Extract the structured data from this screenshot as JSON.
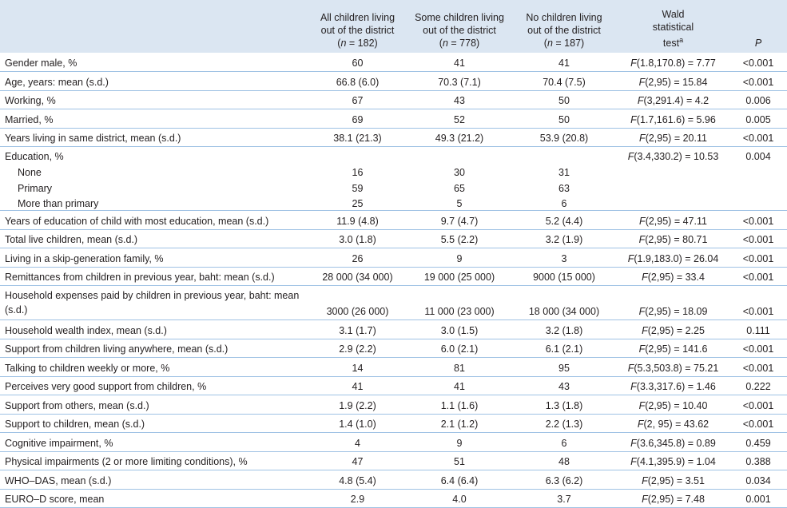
{
  "table": {
    "header": {
      "columns": [
        {
          "lines": [
            "All children living",
            "out of the district",
            "(n = 182)"
          ]
        },
        {
          "lines": [
            "Some children living",
            "out of the district",
            "(n = 778)"
          ]
        },
        {
          "lines": [
            "No children living",
            "out of the district",
            "(n = 187)"
          ]
        }
      ],
      "wald": {
        "lines": [
          "Wald",
          "statistical",
          "test"
        ],
        "sup": "a"
      },
      "p": "P"
    },
    "rows": [
      {
        "label": "Gender male, %",
        "cells": [
          "60",
          "41",
          "41"
        ],
        "wald": "F(1.8,170.8) = 7.77",
        "p": "<0.001"
      },
      {
        "label": "Age, years: mean (s.d.)",
        "cells": [
          "66.8 (6.0)",
          "70.3 (7.1)",
          "70.4 (7.5)"
        ],
        "wald": "F(2,95) = 15.84",
        "p": "<0.001"
      },
      {
        "label": "Working, %",
        "cells": [
          "67",
          "43",
          "50"
        ],
        "wald": "F(3,291.4) = 4.2",
        "p": "0.006"
      },
      {
        "label": "Married, %",
        "cells": [
          "69",
          "52",
          "50"
        ],
        "wald": "F(1.7,161.6) = 5.96",
        "p": "0.005"
      },
      {
        "label": "Years living in same district, mean (s.d.)",
        "cells": [
          "38.1 (21.3)",
          "49.3 (21.2)",
          "53.9 (20.8)"
        ],
        "wald": "F(2,95) = 20.11",
        "p": "<0.001"
      },
      {
        "label": "Education, %",
        "wald": "F(3.4,330.2) = 10.53",
        "p": "0.004",
        "subrows": [
          {
            "label": "None",
            "cells": [
              "16",
              "30",
              "31"
            ]
          },
          {
            "label": "Primary",
            "cells": [
              "59",
              "65",
              "63"
            ]
          },
          {
            "label": "More than primary",
            "cells": [
              "25",
              "5",
              "6"
            ]
          }
        ]
      },
      {
        "label": "Years of education of child with most education, mean (s.d.)",
        "cells": [
          "11.9 (4.8)",
          "9.7 (4.7)",
          "5.2 (4.4)"
        ],
        "wald": "F(2,95) = 47.11",
        "p": "<0.001"
      },
      {
        "label": "Total live children, mean (s.d.)",
        "cells": [
          "3.0 (1.8)",
          "5.5 (2.2)",
          "3.2 (1.9)"
        ],
        "wald": "F(2,95) = 80.71",
        "p": "<0.001"
      },
      {
        "label": "Living in a skip-generation family, %",
        "cells": [
          "26",
          "9",
          "3"
        ],
        "wald": "F(1.9,183.0) = 26.04",
        "p": "<0.001"
      },
      {
        "label": "Remittances from children in previous year, baht: mean (s.d.)",
        "cells": [
          "28 000 (34 000)",
          "19 000 (25 000)",
          "9000 (15 000)"
        ],
        "wald": "F(2,95) = 33.4",
        "p": "<0.001"
      },
      {
        "label": "Household expenses paid by children in previous year, baht: mean (s.d.)",
        "cells": [
          "3000 (26 000)",
          "11 000 (23 000)",
          "18 000 (34 000)"
        ],
        "wald": "F(2,95) = 18.09",
        "p": "<0.001"
      },
      {
        "label": "Household wealth index, mean (s.d.)",
        "cells": [
          "3.1 (1.7)",
          "3.0 (1.5)",
          "3.2 (1.8)"
        ],
        "wald": "F(2,95) = 2.25",
        "p": "0.111"
      },
      {
        "label": "Support from children living anywhere, mean (s.d.)",
        "cells": [
          "2.9 (2.2)",
          "6.0 (2.1)",
          "6.1 (2.1)"
        ],
        "wald": "F(2,95) = 141.6",
        "p": "<0.001"
      },
      {
        "label": "Talking to children weekly or more, %",
        "cells": [
          "14",
          "81",
          "95"
        ],
        "wald": "F(5.3,503.8) = 75.21",
        "p": "<0.001"
      },
      {
        "label": "Perceives very good support from children, %",
        "cells": [
          "41",
          "41",
          "43"
        ],
        "wald": "F(3.3,317.6) = 1.46",
        "p": "0.222"
      },
      {
        "label": "Support from others, mean (s.d.)",
        "cells": [
          "1.9 (2.2)",
          "1.1 (1.6)",
          "1.3 (1.8)"
        ],
        "wald": "F(2,95) = 10.40",
        "p": "<0.001"
      },
      {
        "label": "Support to children, mean (s.d.)",
        "cells": [
          "1.4 (1.0)",
          "2.1 (1.2)",
          "2.2 (1.3)"
        ],
        "wald": "F(2, 95) = 43.62",
        "p": "<0.001"
      },
      {
        "label": "Cognitive impairment, %",
        "cells": [
          "4",
          "9",
          "6"
        ],
        "wald": "F(3.6,345.8) = 0.89",
        "p": "0.459"
      },
      {
        "label": "Physical impairments (2 or more limiting conditions), %",
        "cells": [
          "47",
          "51",
          "48"
        ],
        "wald": "F(4.1,395.9) = 1.04",
        "p": "0.388"
      },
      {
        "label": "WHO–DAS, mean (s.d.)",
        "cells": [
          "4.8 (5.4)",
          "6.4 (6.4)",
          "6.3 (6.2)"
        ],
        "wald": "F(2,95) = 3.51",
        "p": "0.034"
      },
      {
        "label": "EURO–D score, mean",
        "cells": [
          "2.9",
          "4.0",
          "3.7"
        ],
        "wald": "F(2,95) = 7.48",
        "p": "0.001"
      }
    ]
  }
}
